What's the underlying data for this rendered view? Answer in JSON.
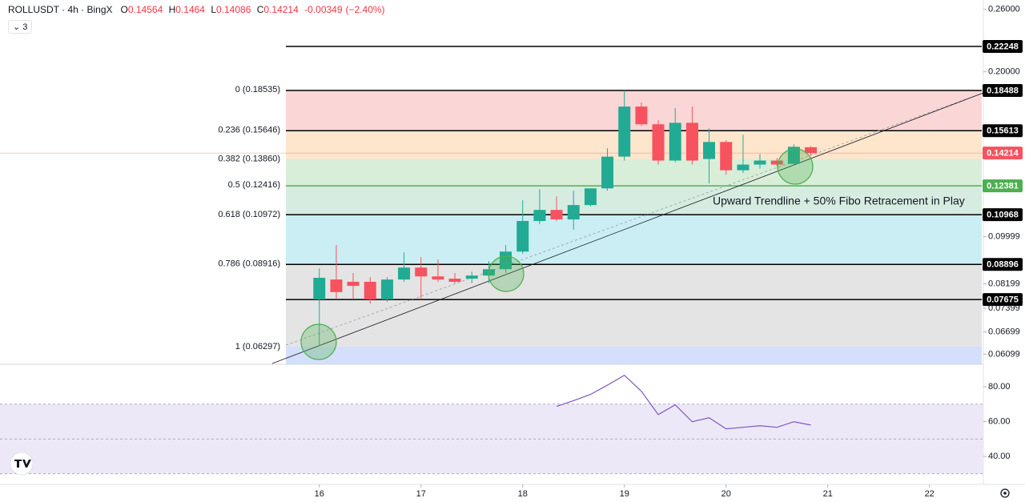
{
  "header": {
    "symbol": "ROLLUSDT · 4h · BingX",
    "ohlc": [
      {
        "label": "O",
        "value": 0.14564
      },
      {
        "label": "H",
        "value": 0.1464
      },
      {
        "label": "L",
        "value": 0.14086
      },
      {
        "label": "C",
        "value": 0.14214
      }
    ],
    "change": -0.00349,
    "change_pct": "(−2.40%)",
    "indicators": "3"
  },
  "chart_data": [
    {
      "type": "candlestick",
      "log": true,
      "x": [
        16,
        16.167,
        16.333,
        16.5,
        16.667,
        16.833,
        17,
        17.167,
        17.333,
        17.5,
        17.667,
        17.833,
        18,
        18.167,
        18.333,
        18.5,
        18.667,
        18.833,
        19,
        19.167,
        19.333,
        19.5,
        19.667,
        19.833,
        20,
        20.167,
        20.333,
        20.5,
        20.667,
        20.833
      ],
      "open": [
        0.0768,
        0.0835,
        0.0827,
        0.0827,
        0.0768,
        0.0835,
        0.0878,
        0.0846,
        0.0838,
        0.0838,
        0.0849,
        0.0872,
        0.0939,
        0.1068,
        0.1119,
        0.1075,
        0.1142,
        0.1225,
        0.14,
        0.1728,
        0.1604,
        0.1377,
        0.1614,
        0.1386,
        0.1489,
        0.1322,
        0.1354,
        0.1377,
        0.1358,
        0.14564
      ],
      "high": [
        0.0875,
        0.0965,
        0.0858,
        0.0843,
        0.0843,
        0.0936,
        0.0917,
        0.0908,
        0.0858,
        0.0863,
        0.0902,
        0.0965,
        0.1166,
        0.1221,
        0.1185,
        0.1213,
        0.1225,
        0.145,
        0.1849,
        0.1758,
        0.1631,
        0.1717,
        0.1728,
        0.1577,
        0.1499,
        0.1535,
        0.1416,
        0.1391,
        0.1474,
        0.1464
      ],
      "low": [
        0.0632,
        0.0768,
        0.0768,
        0.0755,
        0.076,
        0.0827,
        0.0768,
        0.0827,
        0.0822,
        0.0822,
        0.0822,
        0.0858,
        0.093,
        0.1054,
        0.1068,
        0.1029,
        0.1135,
        0.1213,
        0.1377,
        0.1593,
        0.1354,
        0.1367,
        0.1354,
        0.1251,
        0.1298,
        0.1307,
        0.1331,
        0.1345,
        0.1349,
        0.14086
      ],
      "close": [
        0.0841,
        0.0792,
        0.0813,
        0.0768,
        0.0835,
        0.0878,
        0.0846,
        0.0835,
        0.0827,
        0.0849,
        0.0872,
        0.0939,
        0.1068,
        0.1119,
        0.1075,
        0.1142,
        0.1225,
        0.14,
        0.1728,
        0.1604,
        0.1377,
        0.1614,
        0.1377,
        0.1489,
        0.1322,
        0.1354,
        0.1377,
        0.1354,
        0.1459,
        0.14214
      ],
      "up_color": "#22ab94",
      "down_color": "#f7525f",
      "last_color": "#f7525f",
      "xlim": [
        12.86,
        22.53
      ],
      "ylim": [
        0.05846,
        0.2705
      ],
      "xticks": [
        16,
        17,
        18,
        19,
        20,
        21,
        22
      ],
      "yticks": [
        {
          "value": 0.26,
          "label": "0.26000"
        },
        {
          "value": 0.2,
          "label": "0.20000"
        },
        0.09999,
        0.08199,
        0.07399,
        0.06699,
        0.06099
      ],
      "fib_levels": [
        {
          "label": "0 (0.18535)",
          "price": 0.18535,
          "color": "#787b86",
          "fill": "#fbd6d6"
        },
        {
          "label": "0.236 (0.15646)",
          "price": 0.15646,
          "color": "#e03b3b",
          "fill": "#fde6cc"
        },
        {
          "label": "0.382 (0.13860)",
          "price": 0.1386,
          "color": "#f39a00",
          "fill": "#d8eed9"
        },
        {
          "label": "0.5 (0.12416)",
          "price": 0.12416,
          "color": "#4caf50",
          "fill": "#d6ece1"
        },
        {
          "label": "0.618 (0.10972)",
          "price": 0.10972,
          "color": "#089981",
          "fill": "#caeef3"
        },
        {
          "label": "0.786 (0.08916)",
          "price": 0.08916,
          "color": "#00bcd4",
          "fill": "#e4e4e4"
        },
        {
          "label": "1 (0.06297)",
          "price": 0.06297,
          "color": "#787b86",
          "fill": "#d4e0fb"
        }
      ],
      "hlines": [
        {
          "value": 0.22248,
          "color": "#000000"
        },
        {
          "value": 0.18488,
          "color": "#000000"
        },
        {
          "value": 0.15613,
          "color": "#000000"
        },
        {
          "value": 0.12381,
          "color": "#4caf50"
        },
        {
          "value": 0.10968,
          "color": "#000000"
        },
        {
          "value": 0.08896,
          "color": "#000000"
        },
        {
          "value": 0.07675,
          "color": "#000000"
        }
      ],
      "annotation": "Upward Trendline + 50% Fibo Retracement in Play"
    },
    {
      "type": "line",
      "color": "#7e57c2",
      "values": [
        null,
        null,
        null,
        null,
        null,
        null,
        null,
        null,
        null,
        null,
        null,
        null,
        null,
        null,
        68.7,
        72.0,
        75.6,
        80.9,
        86.6,
        77.4,
        64.0,
        69.6,
        59.9,
        62.2,
        55.8,
        56.7,
        57.6,
        56.7,
        59.9,
        58.0
      ],
      "ylim": [
        23.9,
        90.6
      ],
      "yticks": [
        {
          "value": 80,
          "label": "80.00"
        },
        {
          "value": 60,
          "label": "60.00"
        },
        {
          "value": 40,
          "label": "40.00"
        }
      ],
      "levels": [
        70,
        50,
        30
      ],
      "band_color": "#ede8f7"
    }
  ]
}
